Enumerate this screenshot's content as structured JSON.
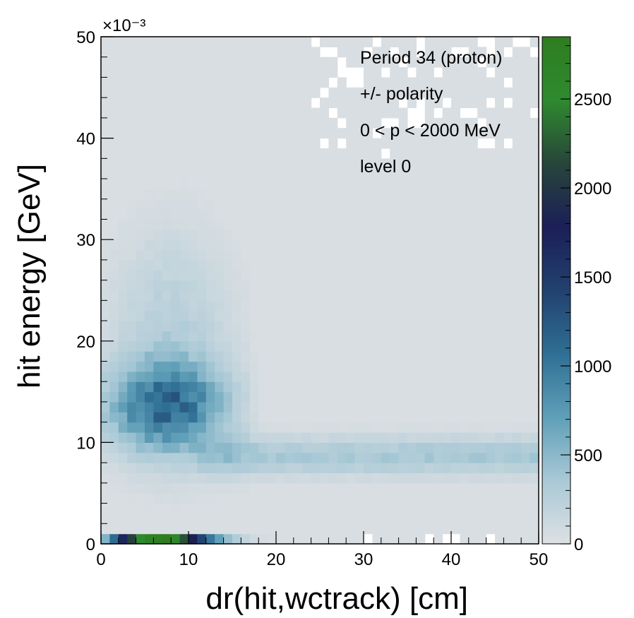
{
  "chart_data": {
    "type": "heatmap",
    "title": "",
    "xlabel": "dr(hit,wctrack) [cm]",
    "ylabel": "hit energy [GeV]",
    "xlim": [
      0,
      50
    ],
    "ylim": [
      0,
      0.05
    ],
    "y_multiplier_label": "×10⁻³",
    "x_ticks": [
      0,
      10,
      20,
      30,
      40,
      50
    ],
    "x_tick_labels": [
      "0",
      "10",
      "20",
      "30",
      "40",
      "50"
    ],
    "y_ticks": [
      0,
      0.01,
      0.02,
      0.03,
      0.04,
      0.05
    ],
    "y_tick_labels": [
      "0",
      "10",
      "20",
      "30",
      "40",
      "50"
    ],
    "bins": {
      "nx": 50,
      "ny": 50,
      "xmin": 0,
      "xmax": 50,
      "ymin": 0,
      "ymax": 0.05
    },
    "z_range": [
      0,
      2850
    ],
    "colorbar_ticks": [
      0,
      500,
      1000,
      1500,
      2000,
      2500
    ],
    "colorbar_tick_labels": [
      "0",
      "500",
      "1000",
      "1500",
      "2000",
      "2500"
    ],
    "colorscale": [
      "#dde0e3",
      "#a9c9d6",
      "#5f9fb8",
      "#2f6f94",
      "#22416f",
      "#1b1f57",
      "#27453a",
      "#2f8a2f",
      "#2e7d20"
    ],
    "lowest_energy_row_counts": [
      550,
      1100,
      1700,
      2100,
      2500,
      2700,
      2800,
      2850,
      2600,
      2200,
      1800,
      1400,
      1000,
      700,
      450,
      300,
      180,
      100,
      60,
      40
    ],
    "features": [
      {
        "name": "core",
        "x_center": 7.5,
        "y_center": 0.0135,
        "peak": 1000
      },
      {
        "name": "band",
        "x_from": 13,
        "x_to": 50,
        "y_center": 0.0087,
        "peak": 350
      }
    ],
    "annotations": [
      "Period 34 (proton)",
      "+/- polarity",
      "0 < p < 2000 MeV",
      "level 0"
    ]
  }
}
